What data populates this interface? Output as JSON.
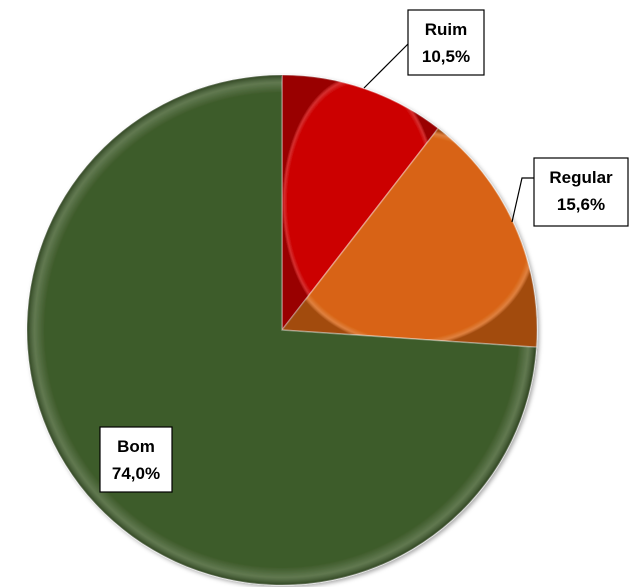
{
  "chart_data": {
    "type": "pie",
    "start_angle_deg": 0,
    "direction": "clockwise",
    "slices": [
      {
        "label": "Ruim",
        "value": 10.5,
        "value_text": "10,5%",
        "color": "#cc0000"
      },
      {
        "label": "Regular",
        "value": 15.6,
        "value_text": "15,6%",
        "color": "#d86414"
      },
      {
        "label": "Bom",
        "value": 74.0,
        "value_text": "74,0%",
        "color": "#3e5b2a"
      }
    ]
  }
}
